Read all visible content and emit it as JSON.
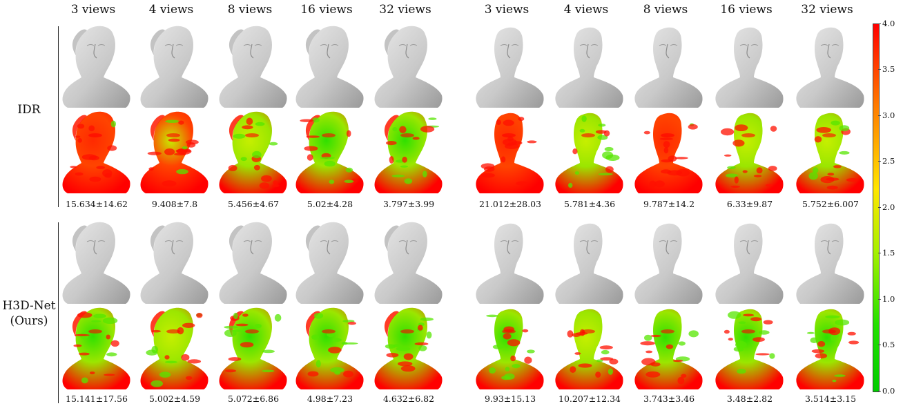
{
  "column_headers": [
    "3 views",
    "4 views",
    "8 views",
    "16 views",
    "32 views",
    "3 views",
    "4 views",
    "8 views",
    "16 views",
    "32 views"
  ],
  "row_labels": {
    "idr": "IDR",
    "h3d_line1": "H3D-Net",
    "h3d_line2": "(Ours)"
  },
  "error_values": {
    "idr": [
      "15.634±14.62",
      "9.408±7.8",
      "5.456±4.67",
      "5.02±4.28",
      "3.797±3.99",
      "21.012±28.03",
      "5.781±4.36",
      "9.787±14.2",
      "6.33±9.87",
      "5.752±6.007"
    ],
    "h3d": [
      "15.141±17.56",
      "5.002±4.59",
      "5.072±6.86",
      "4.98±7.23",
      "4.632±6.82",
      "9.93±15.13",
      "10.207±12.34",
      "3.743±3.46",
      "3.48±2.82",
      "3.514±3.15"
    ]
  },
  "colorbar": {
    "ticks": [
      "4.0",
      "3.5",
      "3.0",
      "2.5",
      "2.0",
      "1.5",
      "1.0",
      "0.5",
      "0.0"
    ],
    "min_color": "#00cc00",
    "mid_color": "#ffe600",
    "max_color": "#ff0000"
  },
  "render": {
    "surface_color": "#c9c9c9",
    "error_levels": {
      "idr_left": [
        0.85,
        0.75,
        0.6,
        0.5,
        0.45
      ],
      "idr_right": [
        0.92,
        0.6,
        0.78,
        0.62,
        0.6
      ],
      "h3d_left": [
        0.55,
        0.6,
        0.55,
        0.5,
        0.55
      ],
      "h3d_right": [
        0.55,
        0.7,
        0.45,
        0.4,
        0.4
      ]
    }
  }
}
